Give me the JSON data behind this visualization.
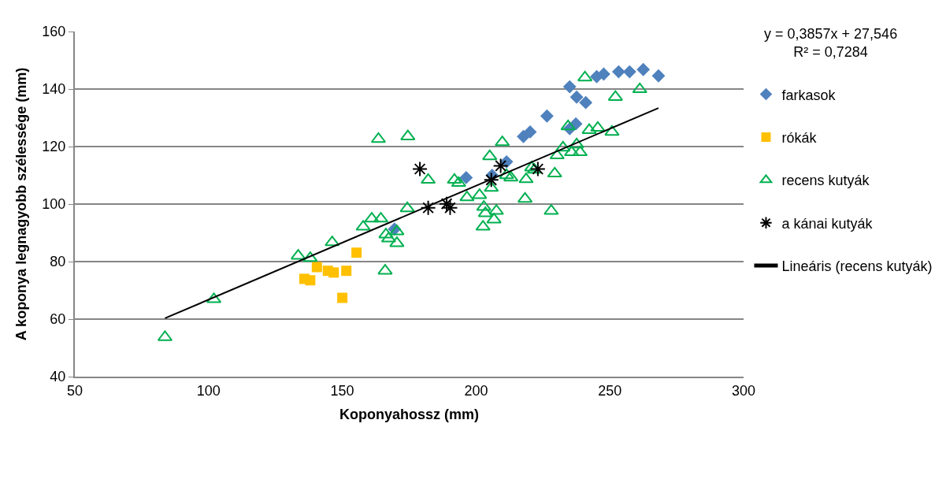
{
  "chart_data": {
    "type": "scatter",
    "xlabel": "Koponyahossz (mm)",
    "ylabel": "A koponya legnagyobb szélessége (mm)",
    "xlim": [
      50,
      300
    ],
    "xticks": [
      50,
      100,
      150,
      200,
      250,
      300
    ],
    "ylim": [
      40,
      160
    ],
    "yticks": [
      40,
      60,
      80,
      100,
      120,
      140,
      160
    ],
    "grid": "y",
    "legend": "right",
    "annotations": [
      "y = 0,3857x + 27,546",
      "R² = 0,7284"
    ],
    "series": [
      {
        "name": "farkasok",
        "color": "#4f81bd",
        "marker": "diamond",
        "x": [
          196.3,
          206,
          211.4,
          169.5,
          217.7,
          220.2,
          226.5,
          235,
          237.3,
          235,
          237.6,
          241,
          245.1,
          247.7,
          253.3,
          257.4,
          262.5,
          268.2
        ],
        "values": [
          109.2,
          110,
          114.7,
          91.3,
          123.5,
          125.1,
          130.6,
          126.2,
          127.9,
          140.8,
          137.2,
          135.3,
          144.3,
          145.2,
          146,
          146,
          146.8,
          144.6
        ]
      },
      {
        "name": "rókák",
        "color": "#ffc000",
        "marker": "square",
        "x": [
          135.8,
          138,
          140.5,
          144.6,
          146.8,
          151.5,
          155.3,
          150
        ],
        "values": [
          74,
          73.5,
          78.1,
          76.8,
          76.2,
          76.8,
          83.1,
          67.4
        ]
      },
      {
        "name": "recens kutyák",
        "color": "#00b050",
        "marker": "triangle",
        "x": [
          83.7,
          102,
          133.5,
          138,
          146.2,
          166,
          157.8,
          161,
          164.4,
          166.3,
          167.3,
          170.4,
          170.4,
          163.5,
          174.5,
          182.1,
          174.3,
          191.9,
          193.5,
          196.6,
          201.3,
          202.9,
          203.5,
          207.6,
          206.7,
          202.6,
          205.1,
          205.7,
          209.8,
          211.4,
          213,
          218.7,
          218.3,
          221.8,
          229.4,
          228.1,
          234.4,
          232.5,
          242.3,
          245.5,
          250.8,
          240.7,
          252.1,
          261.2,
          237.6,
          235.7,
          230.3,
          238.9,
          220.8
        ],
        "values": [
          53.7,
          66.9,
          82,
          81.2,
          86.7,
          76.8,
          92.1,
          94.9,
          94.9,
          89.4,
          88,
          86.4,
          90.5,
          122.6,
          123.5,
          108.4,
          98.5,
          108.4,
          107.3,
          102.3,
          103.1,
          99,
          96.8,
          97.6,
          94.6,
          92.1,
          116.6,
          105.6,
          121.5,
          110,
          109.2,
          108.6,
          101.8,
          111.9,
          110.6,
          97.6,
          127,
          119.6,
          125.7,
          126.5,
          125.1,
          144,
          137.2,
          139.9,
          120.7,
          118,
          116.9,
          118,
          112.7
        ]
      },
      {
        "name": "a kánai kutyák",
        "color": "#000000",
        "marker": "cross",
        "x": [
          179,
          182.1,
          189,
          190.3,
          205.7,
          209.2,
          223.1
        ],
        "values": [
          112.2,
          98.7,
          100.1,
          98.7,
          108.4,
          113.3,
          112.2
        ]
      },
      {
        "name": "Lineáris (recens kutyák)",
        "type": "line",
        "color": "#000000",
        "marker": "none",
        "line_style": "solid",
        "x": [
          83.7,
          268.2
        ],
        "values": [
          60.3,
          133.4
        ]
      }
    ]
  }
}
